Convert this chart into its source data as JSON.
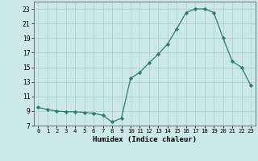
{
  "x": [
    0,
    1,
    2,
    3,
    4,
    5,
    6,
    7,
    8,
    9,
    10,
    11,
    12,
    13,
    14,
    15,
    16,
    17,
    18,
    19,
    20,
    21,
    22,
    23
  ],
  "y": [
    9.5,
    9.2,
    9.0,
    8.9,
    8.9,
    8.8,
    8.7,
    8.4,
    7.5,
    8.0,
    13.5,
    14.3,
    15.6,
    16.8,
    18.2,
    20.3,
    22.5,
    23.0,
    23.0,
    22.5,
    19.0,
    15.8,
    15.0,
    12.5
  ],
  "line_color": "#2e7d6e",
  "marker": "D",
  "marker_size": 2.2,
  "bg_color": "#cce8e8",
  "grid_color": "#b0cfcf",
  "xlabel": "Humidex (Indice chaleur)",
  "xlim": [
    -0.5,
    23.5
  ],
  "ylim": [
    7,
    24
  ],
  "yticks": [
    7,
    9,
    11,
    13,
    15,
    17,
    19,
    21,
    23
  ],
  "xticks": [
    0,
    1,
    2,
    3,
    4,
    5,
    6,
    7,
    8,
    9,
    10,
    11,
    12,
    13,
    14,
    15,
    16,
    17,
    18,
    19,
    20,
    21,
    22,
    23
  ]
}
